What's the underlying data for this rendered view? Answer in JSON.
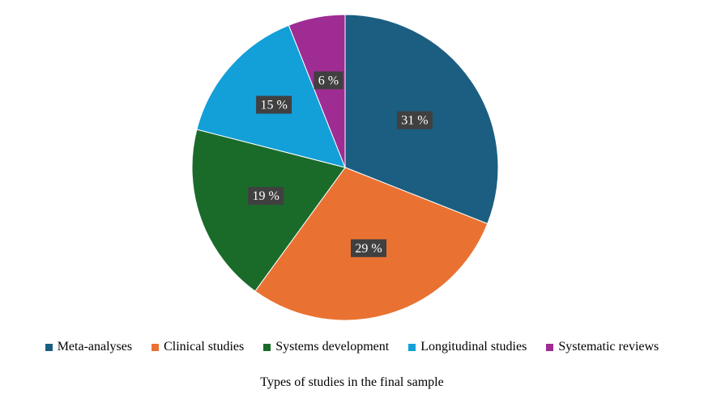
{
  "chart_data": {
    "type": "pie",
    "title": "",
    "categories": [
      "Meta-analyses",
      "Clinical studies",
      "Systems development",
      "Longitudinal studies",
      "Systematic reviews"
    ],
    "values": [
      31,
      29,
      19,
      15,
      6
    ],
    "value_labels": [
      "31 %",
      "29 %",
      "19 %",
      "15 %",
      "6 %"
    ],
    "colors": [
      "#1b5e81",
      "#e97232",
      "#1a6b2a",
      "#139fd8",
      "#9f2c92"
    ],
    "start_angle": "12 o'clock",
    "direction": "clockwise",
    "legend_position": "bottom"
  },
  "caption": "Types of studies in the final sample"
}
